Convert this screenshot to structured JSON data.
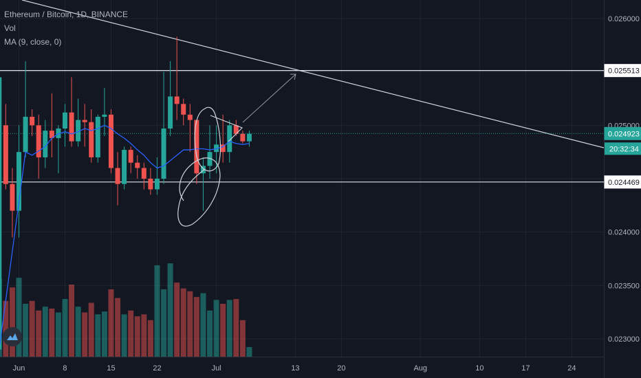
{
  "legend": {
    "symbol": "Ethereum / Bitcoin, 1D, BINANCE",
    "vol": "Vol",
    "ma": "MA (9, close, 0)"
  },
  "colors": {
    "background": "#131722",
    "up": "#26a69a",
    "down": "#ef5350",
    "ma": "#2962ff",
    "grid": "#1f2431",
    "text": "#b2b5be"
  },
  "chart_data": {
    "type": "candlestick",
    "title": "Ethereum / Bitcoin, 1D, BINANCE",
    "ylim": [
      0.02275,
      0.02617
    ],
    "y_ticks": [
      "0.026000",
      "0.025500",
      "0.025000",
      "0.024500",
      "0.024000",
      "0.023500",
      "0.023000"
    ],
    "y_tick_values": [
      0.026,
      0.0255,
      0.025,
      0.0245,
      0.024,
      0.0235,
      0.023
    ],
    "x_ticks": [
      "Jun",
      "8",
      "15",
      "22",
      "Jul",
      "13",
      "20",
      "Aug",
      "10",
      "17",
      "24"
    ],
    "x_tick_dates": [
      "2020-06-01",
      "2020-06-08",
      "2020-06-15",
      "2020-06-22",
      "2020-07-01",
      "2020-07-13",
      "2020-07-20",
      "2020-08-01",
      "2020-08-10",
      "2020-08-17",
      "2020-08-24"
    ],
    "horizontal_levels": [
      {
        "value": 0.025513,
        "label": "0.025513"
      },
      {
        "value": 0.024469,
        "label": "0.024469"
      }
    ],
    "last_price": {
      "value": 0.024923,
      "label": "0.024923",
      "countdown": "20:32:34"
    },
    "candles": [
      {
        "date": "2020-05-29",
        "o": 0.0229,
        "h": 0.02555,
        "l": 0.0229,
        "c": 0.02545
      },
      {
        "date": "2020-05-30",
        "o": 0.025,
        "h": 0.0252,
        "l": 0.0244,
        "c": 0.02445
      },
      {
        "date": "2020-05-31",
        "o": 0.02445,
        "h": 0.0246,
        "l": 0.02395,
        "c": 0.0242
      },
      {
        "date": "2020-06-01",
        "o": 0.0242,
        "h": 0.025,
        "l": 0.02395,
        "c": 0.02475
      },
      {
        "date": "2020-06-02",
        "o": 0.02475,
        "h": 0.0256,
        "l": 0.0247,
        "c": 0.02508
      },
      {
        "date": "2020-06-03",
        "o": 0.02508,
        "h": 0.02515,
        "l": 0.0249,
        "c": 0.025
      },
      {
        "date": "2020-06-04",
        "o": 0.025,
        "h": 0.0251,
        "l": 0.0245,
        "c": 0.0247
      },
      {
        "date": "2020-06-05",
        "o": 0.0247,
        "h": 0.02505,
        "l": 0.0246,
        "c": 0.02495
      },
      {
        "date": "2020-06-06",
        "o": 0.02495,
        "h": 0.0253,
        "l": 0.0247,
        "c": 0.02488
      },
      {
        "date": "2020-06-07",
        "o": 0.02488,
        "h": 0.025,
        "l": 0.02455,
        "c": 0.02497
      },
      {
        "date": "2020-06-08",
        "o": 0.02497,
        "h": 0.0252,
        "l": 0.0248,
        "c": 0.02512
      },
      {
        "date": "2020-06-09",
        "o": 0.02512,
        "h": 0.02545,
        "l": 0.0248,
        "c": 0.02485
      },
      {
        "date": "2020-06-10",
        "o": 0.02485,
        "h": 0.02525,
        "l": 0.0248,
        "c": 0.02505
      },
      {
        "date": "2020-06-11",
        "o": 0.02505,
        "h": 0.0252,
        "l": 0.0248,
        "c": 0.02503
      },
      {
        "date": "2020-06-12",
        "o": 0.02503,
        "h": 0.02515,
        "l": 0.02465,
        "c": 0.0247
      },
      {
        "date": "2020-06-13",
        "o": 0.0247,
        "h": 0.0251,
        "l": 0.02465,
        "c": 0.02508
      },
      {
        "date": "2020-06-14",
        "o": 0.02508,
        "h": 0.02535,
        "l": 0.0249,
        "c": 0.0251
      },
      {
        "date": "2020-06-15",
        "o": 0.0251,
        "h": 0.02515,
        "l": 0.02455,
        "c": 0.0246
      },
      {
        "date": "2020-06-16",
        "o": 0.0246,
        "h": 0.02475,
        "l": 0.02425,
        "c": 0.02445
      },
      {
        "date": "2020-06-17",
        "o": 0.02445,
        "h": 0.0248,
        "l": 0.0244,
        "c": 0.02477
      },
      {
        "date": "2020-06-18",
        "o": 0.02477,
        "h": 0.0248,
        "l": 0.02455,
        "c": 0.02465
      },
      {
        "date": "2020-06-19",
        "o": 0.02465,
        "h": 0.02472,
        "l": 0.0245,
        "c": 0.0246
      },
      {
        "date": "2020-06-20",
        "o": 0.0246,
        "h": 0.02465,
        "l": 0.0244,
        "c": 0.0245
      },
      {
        "date": "2020-06-21",
        "o": 0.0245,
        "h": 0.0246,
        "l": 0.02435,
        "c": 0.0244
      },
      {
        "date": "2020-06-22",
        "o": 0.0244,
        "h": 0.0247,
        "l": 0.02435,
        "c": 0.0245
      },
      {
        "date": "2020-06-23",
        "o": 0.0245,
        "h": 0.0255,
        "l": 0.02445,
        "c": 0.02497
      },
      {
        "date": "2020-06-24",
        "o": 0.02497,
        "h": 0.0256,
        "l": 0.0249,
        "c": 0.02527
      },
      {
        "date": "2020-06-25",
        "o": 0.02527,
        "h": 0.02583,
        "l": 0.02505,
        "c": 0.0252
      },
      {
        "date": "2020-06-26",
        "o": 0.0252,
        "h": 0.02525,
        "l": 0.025,
        "c": 0.0251
      },
      {
        "date": "2020-06-27",
        "o": 0.0251,
        "h": 0.0252,
        "l": 0.02475,
        "c": 0.02505
      },
      {
        "date": "2020-06-28",
        "o": 0.02505,
        "h": 0.02505,
        "l": 0.02445,
        "c": 0.02455
      },
      {
        "date": "2020-06-29",
        "o": 0.02455,
        "h": 0.0247,
        "l": 0.0242,
        "c": 0.02462
      },
      {
        "date": "2020-06-30",
        "o": 0.02462,
        "h": 0.025,
        "l": 0.0245,
        "c": 0.02475
      },
      {
        "date": "2020-07-01",
        "o": 0.02475,
        "h": 0.025,
        "l": 0.02455,
        "c": 0.02482
      },
      {
        "date": "2020-07-02",
        "o": 0.02482,
        "h": 0.0251,
        "l": 0.02465,
        "c": 0.02475
      },
      {
        "date": "2020-07-03",
        "o": 0.02475,
        "h": 0.02505,
        "l": 0.02465,
        "c": 0.025
      },
      {
        "date": "2020-07-04",
        "o": 0.025,
        "h": 0.02505,
        "l": 0.0249,
        "c": 0.02492
      },
      {
        "date": "2020-07-05",
        "o": 0.02492,
        "h": 0.02495,
        "l": 0.02483,
        "c": 0.02485
      },
      {
        "date": "2020-07-06",
        "o": 0.02485,
        "h": 0.02495,
        "l": 0.0248,
        "c": 0.02492
      }
    ],
    "volume_ylim": [
      0,
      100
    ],
    "volumes": [
      81,
      58,
      72,
      82,
      55,
      58,
      48,
      52,
      50,
      46,
      60,
      75,
      52,
      46,
      56,
      44,
      47,
      70,
      61,
      44,
      48,
      42,
      44,
      38,
      95,
      70,
      97,
      77,
      71,
      68,
      62,
      66,
      48,
      59,
      55,
      59,
      60,
      38,
      10
    ],
    "ma_label": "MA (9, close, 0)",
    "ma_values": [
      0.0229,
      0.02336,
      0.02382,
      0.02428,
      0.02475,
      0.02472,
      0.02476,
      0.0248,
      0.02488,
      0.02492,
      0.02494,
      0.02492,
      0.02494,
      0.02497,
      0.02495,
      0.02497,
      0.025,
      0.02497,
      0.02492,
      0.02488,
      0.02483,
      0.02477,
      0.02472,
      0.02465,
      0.0246,
      0.02462,
      0.02467,
      0.02472,
      0.02477,
      0.02477,
      0.02478,
      0.02478,
      0.02477,
      0.02478,
      0.0248,
      0.02485,
      0.02483,
      0.02482,
      0.02483
    ]
  }
}
